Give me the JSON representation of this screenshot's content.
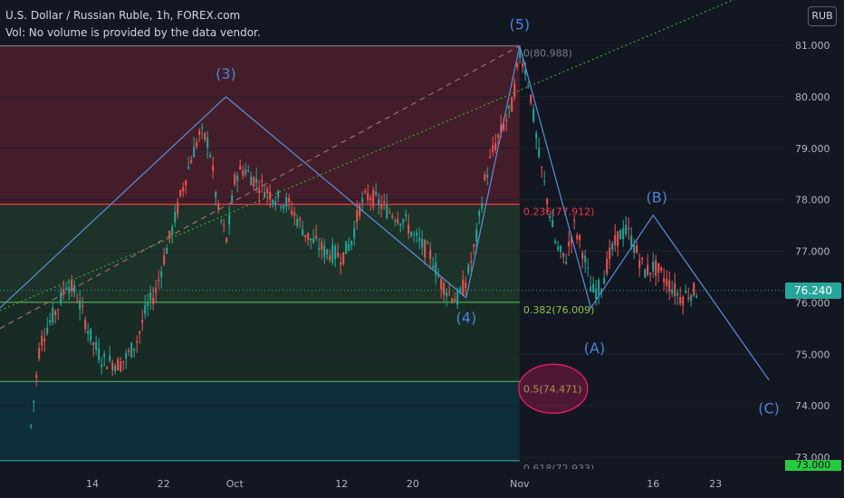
{
  "legend": {
    "title": "U.S. Dollar / Russian Ruble, 1h, FOREX.com",
    "volume_note": "Vol: No volume is provided by the data vendor."
  },
  "currency_button": "RUB",
  "last_price": "76.240",
  "bottom_tag": "73.000",
  "colors": {
    "background": "#131722",
    "up": "#26a69a",
    "down": "#ef5350",
    "wave_line": "#5b8fd6",
    "trend_line": "#3fa32c",
    "fib_red": "#f23645",
    "fib_green": "#4caf50",
    "label_blue": "#4b83d8"
  },
  "chart_data": {
    "type": "candlestick",
    "title": "U.S. Dollar / Russian Ruble, 1h, FOREX.com",
    "ylim": [
      72.8,
      81.7
    ],
    "yticks": [
      "81.000",
      "80.000",
      "79.000",
      "78.000",
      "77.000",
      "76.000",
      "75.000",
      "74.000",
      "73.000"
    ],
    "xticks": [
      "14",
      "22",
      "Oct",
      "12",
      "20",
      "Nov",
      "16",
      "23"
    ],
    "price_path": [
      [
        "Sep 7",
        73.6
      ],
      [
        "Sep 8",
        75.2
      ],
      [
        "Sep 9",
        75.6
      ],
      [
        "Sep 10",
        75.9
      ],
      [
        "Sep 11",
        76.4
      ],
      [
        "Sep 12",
        76.2
      ],
      [
        "Sep 13",
        75.7
      ],
      [
        "Sep 14",
        75.2
      ],
      [
        "Sep 15",
        74.9
      ],
      [
        "Sep 17",
        74.8
      ],
      [
        "Sep 18",
        75.0
      ],
      [
        "Sep 19",
        75.3
      ],
      [
        "Sep 20",
        75.9
      ],
      [
        "Sep 21",
        76.2
      ],
      [
        "Sep 22",
        76.9
      ],
      [
        "Sep 23",
        77.5
      ],
      [
        "Sep 24",
        78.2
      ],
      [
        "Sep 25",
        78.8
      ],
      [
        "Sep 26",
        79.3
      ],
      [
        "Sep 27",
        79.1
      ],
      [
        "Sep 28",
        77.8
      ],
      [
        "Sep 29",
        77.2
      ],
      [
        "Sep 30",
        78.5
      ],
      [
        "Oct 1",
        78.6
      ],
      [
        "Oct 2",
        78.4
      ],
      [
        "Oct 4",
        78.1
      ],
      [
        "Oct 6",
        77.9
      ],
      [
        "Oct 8",
        77.3
      ],
      [
        "Oct 10",
        77.0
      ],
      [
        "Oct 12",
        76.9
      ],
      [
        "Oct 13",
        77.2
      ],
      [
        "Oct 14",
        77.9
      ],
      [
        "Oct 15",
        78.1
      ],
      [
        "Oct 17",
        77.8
      ],
      [
        "Oct 19",
        77.6
      ],
      [
        "Oct 20",
        77.3
      ],
      [
        "Oct 22",
        76.9
      ],
      [
        "Oct 23",
        76.4
      ],
      [
        "Oct 24",
        76.2
      ],
      [
        "Oct 25",
        76.05
      ],
      [
        "Oct 26",
        76.5
      ],
      [
        "Oct 27",
        77.2
      ],
      [
        "Oct 28",
        78.4
      ],
      [
        "Oct 29",
        79.0
      ],
      [
        "Oct 30",
        79.4
      ],
      [
        "Oct 31",
        79.8
      ],
      [
        "Nov 1",
        80.9
      ],
      [
        "Nov 2",
        80.2
      ],
      [
        "Nov 3",
        78.9
      ],
      [
        "Nov 4",
        78.0
      ],
      [
        "Nov 5",
        77.1
      ],
      [
        "Nov 6",
        76.8
      ],
      [
        "Nov 7",
        77.5
      ],
      [
        "Nov 8",
        77.0
      ],
      [
        "Nov 9",
        76.2
      ],
      [
        "Nov 10",
        76.3
      ],
      [
        "Nov 11",
        76.9
      ],
      [
        "Nov 12",
        77.3
      ],
      [
        "Nov 13",
        77.4
      ],
      [
        "Nov 14",
        77.0
      ],
      [
        "Nov 15",
        76.6
      ],
      [
        "Nov 16",
        76.7
      ],
      [
        "Nov 17",
        76.5
      ],
      [
        "Nov 18",
        76.3
      ],
      [
        "Nov 19",
        76.1
      ],
      [
        "Nov 20",
        76.2
      ],
      [
        "Nov 21",
        76.24
      ]
    ],
    "fibonacci": {
      "anchor_date": "Nov 1",
      "levels": [
        {
          "ratio": 0,
          "label": "0(80.988)",
          "price": 80.988
        },
        {
          "ratio": 0.236,
          "label": "0.236(77.912)",
          "price": 77.912
        },
        {
          "ratio": 0.382,
          "label": "0.382(76.009)",
          "price": 76.009
        },
        {
          "ratio": 0.5,
          "label": "0.5(74.471)",
          "price": 74.471
        },
        {
          "ratio": 0.618,
          "label": "0.618(72.933)",
          "price": 72.933
        }
      ]
    },
    "elliott_waves": [
      {
        "label": "(3)",
        "date": "Sep 29",
        "price": 80.0
      },
      {
        "label": "(4)",
        "date": "Oct 26",
        "price": 76.1
      },
      {
        "label": "(5)",
        "date": "Nov 1",
        "price": 80.988
      },
      {
        "label": "(A)",
        "date": "Nov 9",
        "price": 75.9
      },
      {
        "label": "(B)",
        "date": "Nov 16",
        "price": 77.7
      },
      {
        "label": "(C)",
        "date": "Nov 29",
        "price": 74.5
      }
    ],
    "highlighted_level": "0.5(74.471)"
  }
}
